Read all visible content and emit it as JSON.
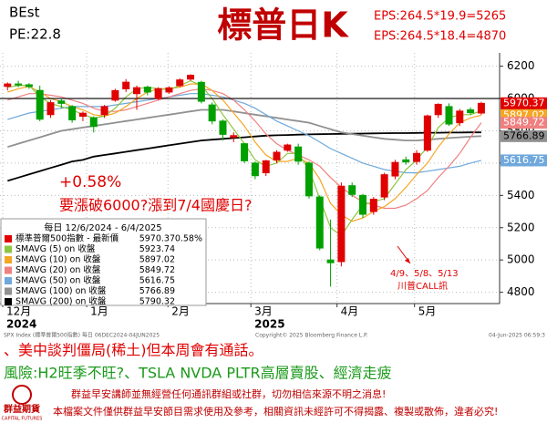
{
  "header": {
    "left": [
      "BEst",
      "PE:22.8"
    ],
    "eps": [
      "EPS:264.5*19.9=5265",
      "EPS:264.5*18.4=4870"
    ]
  },
  "chart_data": {
    "type": "candlestick",
    "title": "標普日K",
    "annotations": [
      "+0.58%",
      "要漲破6000?漲到7/4國慶日?",
      "4/9、5/8、5/13",
      "川普CALL訊"
    ],
    "legend_title": "每日 12/6/2024 - 6/4/2025",
    "ylim": [
      4730,
      6260
    ],
    "yticks": [
      4800,
      5000,
      5200,
      5400,
      5600,
      5800,
      6000,
      6200
    ],
    "xlim": [
      -0.7,
      45.7
    ],
    "xticks": [
      {
        "value": -0.45,
        "label": "12月"
      },
      {
        "value": 7.35,
        "label": "1月"
      },
      {
        "value": 14.9,
        "label": "2月"
      },
      {
        "value": 22.6,
        "label": "3月"
      },
      {
        "value": 30.6,
        "label": "4月"
      },
      {
        "value": 37.8,
        "label": "5月"
      }
    ],
    "year_ticks": [
      {
        "value": -0.45,
        "label": "2024"
      },
      {
        "value": 22.6,
        "label": "2025"
      }
    ],
    "hline": 6000,
    "grid": true,
    "ohlc": {
      "name": "標準普爾500指數 - 最新價",
      "color": "#e00000",
      "down_color": "#00a000",
      "last": 5970.37,
      "change": "0.58%",
      "open": [
        6075,
        6090,
        6085,
        6050,
        5900,
        5985,
        5950,
        5890,
        5880,
        5900,
        5990,
        6060,
        6030,
        6070,
        6000,
        6040,
        6080,
        6120,
        6100,
        5960,
        5860,
        5760,
        5720,
        5600,
        5540,
        5620,
        5680,
        5700,
        5600,
        5390,
        5000,
        4990,
        5460,
        5400,
        5300,
        5390,
        5520,
        5620,
        5610,
        5680,
        5900,
        5950,
        5850,
        5930,
        5910
      ],
      "high": [
        6100,
        6110,
        6095,
        6080,
        5990,
        6000,
        5960,
        5920,
        5890,
        5960,
        6060,
        6120,
        6080,
        6080,
        6070,
        6075,
        6125,
        6150,
        6110,
        5975,
        5870,
        5790,
        5725,
        5610,
        5620,
        5680,
        5720,
        5720,
        5610,
        5400,
        5250,
        5480,
        5480,
        5410,
        5390,
        5540,
        5620,
        5640,
        5680,
        5900,
        5970,
        5970,
        5935,
        5945,
        5980
      ],
      "low": [
        6050,
        6070,
        6060,
        5860,
        5880,
        5940,
        5850,
        5860,
        5790,
        5880,
        5980,
        6040,
        5930,
        6020,
        5990,
        6030,
        6070,
        6110,
        5970,
        5840,
        5740,
        5730,
        5600,
        5500,
        5520,
        5600,
        5670,
        5590,
        5380,
        5060,
        4835,
        4960,
        5390,
        5260,
        5280,
        5370,
        5500,
        5590,
        5590,
        5670,
        5880,
        5830,
        5830,
        5900,
        5900
      ],
      "close": [
        6090,
        6084,
        6074,
        5872,
        5974,
        5970,
        5868,
        5909,
        5827,
        5950,
        6049,
        6101,
        6067,
        6040,
        6061,
        6066,
        6115,
        6144,
        5983,
        5861,
        5778,
        5770,
        5614,
        5522,
        5614,
        5667,
        5712,
        5612,
        5397,
        5074,
        4983,
        5457,
        5406,
        5283,
        5376,
        5528,
        5604,
        5607,
        5660,
        5892,
        5964,
        5842,
        5922,
        5912,
        5970
      ]
    },
    "series": [
      {
        "name": "SMAVG (5)  on 收盤",
        "color": "#8dc63f",
        "last": 5923.74,
        "values": [
          6070,
          6080,
          6082,
          6010,
          5970,
          5950,
          5930,
          5900,
          5880,
          5890,
          5940,
          6010,
          6060,
          6070,
          6060,
          6055,
          6080,
          6110,
          6080,
          6000,
          5900,
          5810,
          5720,
          5620,
          5580,
          5600,
          5660,
          5660,
          5560,
          5380,
          5200,
          5150,
          5250,
          5340,
          5360,
          5380,
          5470,
          5560,
          5620,
          5700,
          5820,
          5880,
          5900,
          5900,
          5924
        ]
      },
      {
        "name": "SMAVG (10)  on 收盤",
        "color": "#f5a623",
        "last": 5897.02,
        "values": [
          6040,
          6060,
          6075,
          6040,
          6000,
          5980,
          5950,
          5930,
          5900,
          5890,
          5910,
          5950,
          6000,
          6040,
          6060,
          6060,
          6070,
          6090,
          6090,
          6050,
          5990,
          5910,
          5830,
          5730,
          5650,
          5610,
          5610,
          5630,
          5600,
          5500,
          5350,
          5280,
          5240,
          5260,
          5300,
          5330,
          5380,
          5450,
          5530,
          5600,
          5700,
          5780,
          5850,
          5880,
          5897
        ]
      },
      {
        "name": "SMAVG (20)  on 收盤",
        "color": "#f08080",
        "last": 5849.72,
        "values": [
          5990,
          6010,
          6030,
          6030,
          6020,
          6010,
          5990,
          5970,
          5940,
          5920,
          5920,
          5930,
          5950,
          5970,
          5990,
          6010,
          6030,
          6050,
          6060,
          6050,
          6030,
          5990,
          5930,
          5860,
          5780,
          5720,
          5680,
          5650,
          5620,
          5580,
          5510,
          5450,
          5400,
          5360,
          5340,
          5320,
          5320,
          5340,
          5380,
          5430,
          5510,
          5580,
          5660,
          5760,
          5850
        ]
      },
      {
        "name": "SMAVG (50)  on 收盤",
        "color": "#6fa8dc",
        "last": 5616.75,
        "values": [
          5870,
          5890,
          5910,
          5920,
          5930,
          5940,
          5950,
          5950,
          5950,
          5950,
          5960,
          5970,
          5980,
          5990,
          6000,
          6010,
          6020,
          6030,
          6030,
          6020,
          6010,
          5990,
          5970,
          5940,
          5900,
          5860,
          5830,
          5800,
          5770,
          5730,
          5690,
          5660,
          5630,
          5600,
          5580,
          5560,
          5550,
          5540,
          5540,
          5550,
          5560,
          5570,
          5580,
          5600,
          5617
        ]
      },
      {
        "name": "SMAVG (100)  on 收盤",
        "color": "#909090",
        "last": 5766.89,
        "values": [
          5700,
          5720,
          5740,
          5760,
          5780,
          5800,
          5810,
          5820,
          5830,
          5840,
          5850,
          5860,
          5870,
          5880,
          5890,
          5900,
          5910,
          5920,
          5930,
          5930,
          5930,
          5920,
          5910,
          5900,
          5890,
          5880,
          5870,
          5860,
          5850,
          5830,
          5810,
          5790,
          5780,
          5770,
          5760,
          5750,
          5745,
          5740,
          5740,
          5745,
          5750,
          5755,
          5760,
          5764,
          5767
        ]
      },
      {
        "name": "SMAVG (200)  on 收盤",
        "color": "#000000",
        "last": 5790.32,
        "values": [
          5490,
          5510,
          5530,
          5550,
          5570,
          5590,
          5610,
          5620,
          5640,
          5650,
          5660,
          5670,
          5680,
          5690,
          5700,
          5710,
          5720,
          5730,
          5740,
          5745,
          5750,
          5755,
          5760,
          5765,
          5770,
          5772,
          5774,
          5776,
          5778,
          5779,
          5780,
          5781,
          5782,
          5783,
          5784,
          5785,
          5786,
          5786,
          5787,
          5788,
          5788,
          5789,
          5789,
          5790,
          5790
        ]
      }
    ],
    "source": [
      "SPX Index (標準普爾500指數) 每日 06DEC2024-04JUN2025",
      "Copyright© 2025 Bloomberg Finance L.P.",
      "04-Jun-2025 06:59:3"
    ]
  },
  "notes": [
    "、美中談判僵局(稀土)但本周會有通話。",
    "風險:H2旺季不旺?、TSLA NVDA PLTR高層賣股、經濟走疲"
  ],
  "footer": {
    "logo": "群益期貨",
    "logo_sub": "CAPITAL FUTURES",
    "lines": [
      "群益早安講師並無經營任何通訊群組或社群，切勿相信來源不明之消息!",
      "本檔案文件僅供群益早安節目需求使用及參考，相關資訊未經許可不得揭露、複製或散佈，違者必究!"
    ]
  }
}
